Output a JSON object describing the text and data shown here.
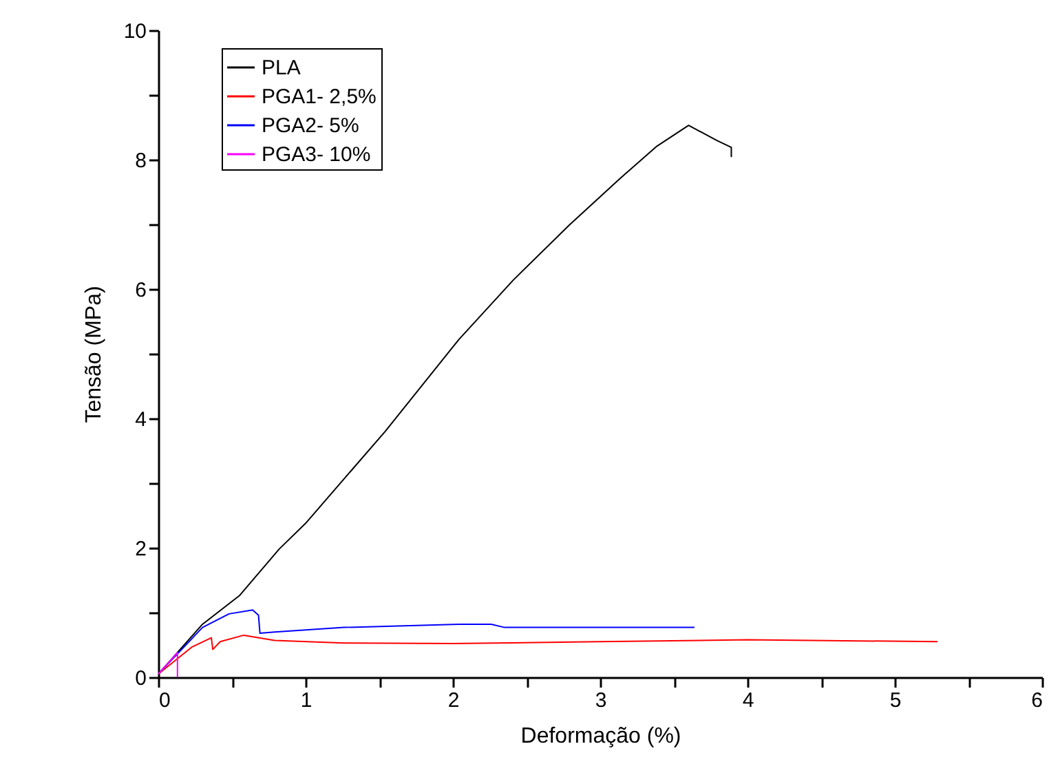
{
  "chart_data": {
    "type": "line",
    "xlabel": "Deformação (%)",
    "ylabel": "Tensão (MPa)",
    "xlim": [
      0,
      6
    ],
    "ylim": [
      0,
      10
    ],
    "xticks": [
      0,
      {
        "value": 0.5,
        "label": null
      },
      1,
      {
        "value": 1.5,
        "label": null
      },
      2,
      {
        "value": 2.5,
        "label": null
      },
      3,
      {
        "value": 3.5,
        "label": null
      },
      4,
      {
        "value": 4.5,
        "label": null
      },
      5,
      {
        "value": 5.5,
        "label": null
      },
      6
    ],
    "yticks": [
      0,
      {
        "value": 1,
        "label": null
      },
      2,
      {
        "value": 3,
        "label": null
      },
      4,
      {
        "value": 5,
        "label": null
      },
      6,
      {
        "value": 7,
        "label": null
      },
      8,
      {
        "value": 9,
        "label": null
      },
      10
    ],
    "grid": false,
    "legend": "top left",
    "marker": "none",
    "line_style": "solid",
    "series": [
      {
        "name": "PLA",
        "color": "#000000",
        "x": [
          0,
          0.3,
          0.55,
          0.82,
          1.0,
          1.54,
          2.04,
          2.41,
          2.79,
          3.13,
          3.38,
          3.6,
          3.79,
          3.89,
          3.89
        ],
        "values": [
          0.05,
          0.82,
          1.26,
          1.98,
          2.38,
          3.8,
          5.22,
          6.14,
          6.99,
          7.7,
          8.2,
          8.53,
          8.3,
          8.19,
          8.04
        ]
      },
      {
        "name": "PGA1- 2,5%",
        "color": "#ff0000",
        "x": [
          0,
          0.23,
          0.36,
          0.37,
          0.42,
          0.58,
          0.79,
          1.26,
          2.0,
          3.0,
          4.0,
          5.29
        ],
        "values": [
          0.05,
          0.47,
          0.61,
          0.43,
          0.55,
          0.65,
          0.57,
          0.53,
          0.52,
          0.55,
          0.58,
          0.55
        ]
      },
      {
        "name": "PGA2- 5%",
        "color": "#0000ff",
        "x": [
          0,
          0.3,
          0.48,
          0.64,
          0.68,
          0.69,
          0.79,
          1.26,
          2.04,
          2.26,
          2.35,
          3.64
        ],
        "values": [
          0.05,
          0.77,
          0.98,
          1.04,
          0.96,
          0.68,
          0.7,
          0.77,
          0.82,
          0.82,
          0.77,
          0.77
        ]
      },
      {
        "name": "PGA3- 10%",
        "color": "#ff00ff",
        "x": [
          0,
          0.13,
          0.13
        ],
        "values": [
          0.05,
          0.38,
          0
        ]
      }
    ]
  }
}
